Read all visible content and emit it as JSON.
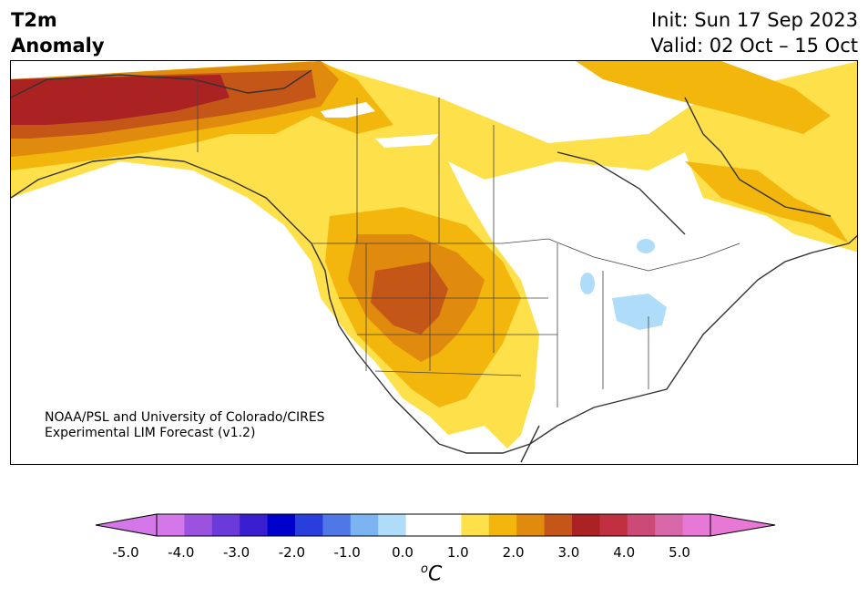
{
  "title": {
    "line1": "T2m",
    "line2": "Anomaly",
    "init": "Init: Sun 17 Sep 2023",
    "valid": "Valid: 02 Oct – 15 Oct"
  },
  "credit": {
    "line1": "NOAA/PSL and University of Colorado/CIRES",
    "line2": "Experimental LIM Forecast (v1.2)"
  },
  "colorbar": {
    "unit_base": "C",
    "unit_super": "o",
    "ticks": [
      "-5.0",
      "-4.0",
      "-3.0",
      "-2.0",
      "-1.0",
      "0.0",
      "1.0",
      "2.0",
      "3.0",
      "4.0",
      "5.0"
    ],
    "colors": [
      "#d477e8",
      "#9a52df",
      "#6a3adb",
      "#3a1fd0",
      "#0000cc",
      "#2a3ede",
      "#4f78e6",
      "#7bb4f1",
      "#aedcf9",
      "#ffffff",
      "#ffffff",
      "#fde04a",
      "#f3b60c",
      "#e08a0e",
      "#c45618",
      "#ab2222",
      "#c03040",
      "#cc4a78",
      "#d968a8",
      "#e878d6"
    ],
    "left_extend_color": "#d477e8",
    "right_extend_color": "#e878d6"
  }
}
